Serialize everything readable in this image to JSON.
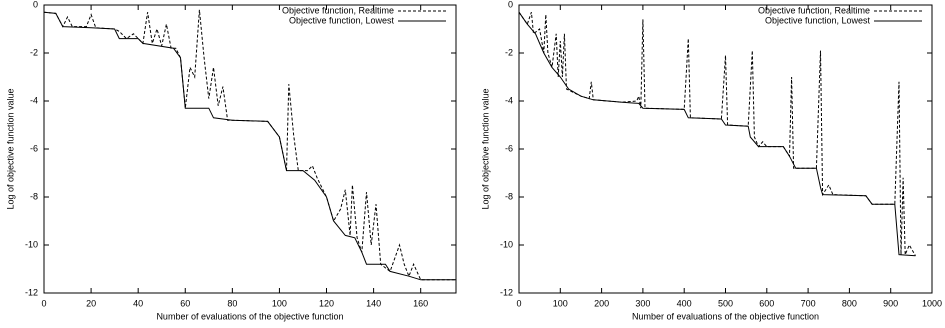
{
  "chart_data": [
    {
      "type": "line",
      "xlabel": "Number of evaluations of the objective function",
      "ylabel": "Log of objective function value",
      "xlim": [
        0,
        175
      ],
      "xticks": [
        0,
        20,
        40,
        60,
        80,
        100,
        120,
        140,
        160
      ],
      "ylim": [
        -12,
        0
      ],
      "yticks": [
        -12,
        -10,
        -8,
        -6,
        -4,
        -2,
        0
      ],
      "legend": "upper right",
      "series": [
        {
          "name": "Objective function, Realtime",
          "color": "#000000",
          "style": "dashed",
          "x": [
            0,
            5,
            8,
            10,
            12,
            18,
            20,
            22,
            30,
            32,
            35,
            38,
            40,
            42,
            44,
            46,
            48,
            50,
            52,
            54,
            56,
            58,
            60,
            62,
            64,
            66,
            68,
            70,
            72,
            74,
            76,
            78,
            80,
            95,
            100,
            103,
            104,
            106,
            108,
            112,
            114,
            116,
            120,
            123,
            126,
            128,
            130,
            131,
            133,
            135,
            137,
            139,
            141,
            143,
            147,
            151,
            153,
            155,
            157,
            160,
            175
          ],
          "values": [
            -0.3,
            -0.35,
            -0.9,
            -0.5,
            -0.9,
            -0.9,
            -0.4,
            -0.95,
            -1.0,
            -1.1,
            -1.4,
            -1.2,
            -1.4,
            -1.6,
            -0.3,
            -1.6,
            -1.0,
            -1.7,
            -0.8,
            -1.8,
            -1.8,
            -2.2,
            -4.3,
            -2.6,
            -3.0,
            -0.2,
            -2.2,
            -3.9,
            -2.6,
            -4.2,
            -3.4,
            -4.8,
            -4.8,
            -4.85,
            -5.5,
            -6.9,
            -3.3,
            -5.4,
            -6.9,
            -6.9,
            -6.7,
            -7.2,
            -8.0,
            -9.0,
            -8.5,
            -7.7,
            -9.6,
            -7.5,
            -9.7,
            -10.3,
            -7.8,
            -10.0,
            -8.3,
            -10.8,
            -11.1,
            -10.0,
            -10.8,
            -11.3,
            -10.8,
            -11.45,
            -11.45
          ]
        },
        {
          "name": "Objective function, Lowest",
          "color": "#000000",
          "style": "solid",
          "x": [
            0,
            5,
            8,
            20,
            30,
            32,
            40,
            42,
            55,
            58,
            60,
            70,
            72,
            80,
            95,
            100,
            103,
            110,
            115,
            120,
            123,
            128,
            132,
            135,
            137,
            145,
            147,
            155,
            160,
            175
          ],
          "values": [
            -0.3,
            -0.35,
            -0.9,
            -0.95,
            -1.0,
            -1.4,
            -1.4,
            -1.6,
            -1.8,
            -2.2,
            -4.3,
            -4.3,
            -4.7,
            -4.8,
            -4.85,
            -5.5,
            -6.9,
            -6.9,
            -7.3,
            -8.0,
            -9.0,
            -9.6,
            -9.7,
            -10.3,
            -10.8,
            -10.8,
            -11.1,
            -11.3,
            -11.45,
            -11.45
          ]
        }
      ]
    },
    {
      "type": "line",
      "xlabel": "Number of evaluations of the objective function",
      "ylabel": "Log of objective function value",
      "xlim": [
        0,
        1000
      ],
      "xticks": [
        0,
        100,
        200,
        300,
        400,
        500,
        600,
        700,
        800,
        900,
        1000
      ],
      "ylim": [
        -12,
        0
      ],
      "yticks": [
        -12,
        -10,
        -8,
        -6,
        -4,
        -2,
        0
      ],
      "legend": "upper right",
      "series": [
        {
          "name": "Objective function, Realtime",
          "color": "#000000",
          "style": "dashed",
          "x": [
            0,
            20,
            30,
            35,
            50,
            60,
            65,
            70,
            80,
            90,
            95,
            100,
            105,
            110,
            115,
            150,
            170,
            175,
            180,
            250,
            285,
            290,
            295,
            300,
            305,
            400,
            410,
            415,
            490,
            500,
            505,
            555,
            565,
            570,
            580,
            590,
            600,
            640,
            655,
            660,
            665,
            720,
            730,
            735,
            750,
            760,
            840,
            855,
            910,
            920,
            925,
            930,
            935,
            945,
            960
          ],
          "values": [
            -0.3,
            -0.8,
            -0.3,
            -1.2,
            -1.0,
            -2.0,
            -0.4,
            -2.0,
            -2.6,
            -1.2,
            -3.0,
            -1.5,
            -3.0,
            -1.2,
            -3.5,
            -3.8,
            -3.9,
            -3.2,
            -3.95,
            -4.05,
            -4.0,
            -3.8,
            -4.3,
            -0.6,
            -4.3,
            -4.35,
            -1.4,
            -4.7,
            -4.75,
            -2.1,
            -5.0,
            -5.05,
            -1.9,
            -5.5,
            -5.9,
            -5.7,
            -5.9,
            -5.9,
            -6.3,
            -3.0,
            -6.8,
            -6.8,
            -1.9,
            -7.9,
            -7.5,
            -7.9,
            -7.95,
            -8.3,
            -8.3,
            -3.2,
            -10.4,
            -7.2,
            -10.4,
            -10.0,
            -10.45
          ]
        },
        {
          "name": "Objective function, Lowest",
          "color": "#000000",
          "style": "solid",
          "x": [
            0,
            20,
            40,
            60,
            80,
            100,
            120,
            150,
            180,
            250,
            290,
            300,
            400,
            410,
            490,
            500,
            555,
            560,
            580,
            640,
            655,
            670,
            720,
            730,
            735,
            840,
            855,
            910,
            920,
            960
          ],
          "values": [
            -0.3,
            -0.8,
            -1.2,
            -2.0,
            -2.6,
            -3.0,
            -3.5,
            -3.8,
            -3.95,
            -4.05,
            -4.1,
            -4.3,
            -4.35,
            -4.7,
            -4.75,
            -5.0,
            -5.05,
            -5.5,
            -5.9,
            -5.9,
            -6.3,
            -6.8,
            -6.8,
            -7.6,
            -7.9,
            -7.95,
            -8.3,
            -8.3,
            -10.4,
            -10.45
          ]
        }
      ]
    }
  ]
}
